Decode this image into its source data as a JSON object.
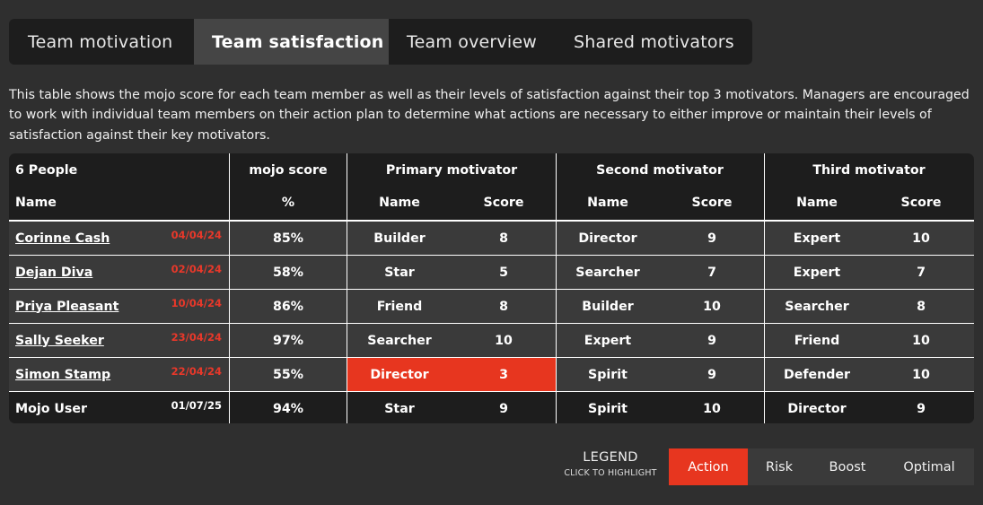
{
  "tabs": [
    "Team motivation",
    "Team satisfaction",
    "Team overview",
    "Shared motivators"
  ],
  "active_tab": "Team satisfaction",
  "description": "This table shows the mojo score for each team member as well as their levels of satisfaction against their top 3 motivators. Managers are encouraged to work with individual team members on their action plan to determine what actions are necessary to either improve or maintain their levels of satisfaction against their key motivators.",
  "table": {
    "people_count": "6 People",
    "headers": {
      "mojo_score": "mojo score",
      "primary": "Primary motivator",
      "second": "Second motivator",
      "third": "Third motivator"
    },
    "subheaders": {
      "name": "Name",
      "percent": "%",
      "mot_name": "Name",
      "mot_score": "Score"
    },
    "rows": [
      {
        "name": "Corinne Cash",
        "date": "04/04/24",
        "mojo": "85%",
        "p_name": "Builder",
        "p_score": "8",
        "s_name": "Director",
        "s_score": "9",
        "t_name": "Expert",
        "t_score": "10"
      },
      {
        "name": "Dejan Diva",
        "date": "02/04/24",
        "mojo": "58%",
        "p_name": "Star",
        "p_score": "5",
        "s_name": "Searcher",
        "s_score": "7",
        "t_name": "Expert",
        "t_score": "7"
      },
      {
        "name": "Priya Pleasant",
        "date": "10/04/24",
        "mojo": "86%",
        "p_name": "Friend",
        "p_score": "8",
        "s_name": "Builder",
        "s_score": "10",
        "t_name": "Searcher",
        "t_score": "8"
      },
      {
        "name": "Sally Seeker",
        "date": "23/04/24",
        "mojo": "97%",
        "p_name": "Searcher",
        "p_score": "10",
        "s_name": "Expert",
        "s_score": "9",
        "t_name": "Friend",
        "t_score": "10"
      },
      {
        "name": "Simon Stamp",
        "date": "22/04/24",
        "mojo": "55%",
        "p_name": "Director",
        "p_score": "3",
        "s_name": "Spirit",
        "s_score": "9",
        "t_name": "Defender",
        "t_score": "10"
      },
      {
        "name": "Mojo User",
        "date": "01/07/25",
        "mojo": "94%",
        "p_name": "Star",
        "p_score": "9",
        "s_name": "Spirit",
        "s_score": "10",
        "t_name": "Director",
        "t_score": "9"
      }
    ]
  },
  "legend": {
    "title": "LEGEND",
    "subtitle": "CLICK TO HIGHLIGHT",
    "items": [
      "Action",
      "Risk",
      "Boost",
      "Optimal"
    ]
  },
  "colors": {
    "background": "#2f2f2f",
    "panel": "#1d1d1d",
    "row": "#3a3a3a",
    "action": "#e7361f",
    "date_red": "#e8382a"
  }
}
